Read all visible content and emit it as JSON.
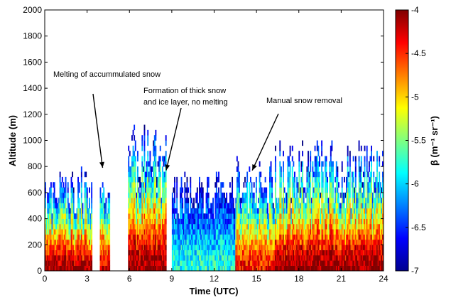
{
  "chart_data": {
    "type": "heatmap",
    "title": "",
    "xlabel": "Time (UTC)",
    "ylabel": "Altitude (m)",
    "xlim": [
      0,
      24
    ],
    "ylim": [
      0,
      2000
    ],
    "xticks": [
      "0",
      "3",
      "6",
      "9",
      "12",
      "15",
      "18",
      "21",
      "24"
    ],
    "yticks": [
      "0",
      "200",
      "400",
      "600",
      "800",
      "1000",
      "1200",
      "1400",
      "1600",
      "1800",
      "2000"
    ],
    "grid": false,
    "colorbar": {
      "label": "β (m⁻¹ sr⁻¹)",
      "range": [
        -7,
        -4
      ],
      "ticks": [
        "-4",
        "-4.5",
        "-5",
        "-5.5",
        "-6",
        "-6.5",
        "-7"
      ],
      "colormap": "jet"
    },
    "profiles": [
      {
        "t_start": 0,
        "t_end": 3.3,
        "top_altitude": 780,
        "surface_log_beta": -4.1
      },
      {
        "t_start": 3.9,
        "t_end": 4.6,
        "top_altitude": 800,
        "surface_log_beta": -4.2
      },
      {
        "t_start": 5.9,
        "t_end": 8.6,
        "top_altitude": 1100,
        "surface_log_beta": -4.0
      },
      {
        "t_start": 9.0,
        "t_end": 13.5,
        "top_altitude": 750,
        "surface_log_beta": -5.8
      },
      {
        "t_start": 13.5,
        "t_end": 16.3,
        "top_altitude": 850,
        "surface_log_beta": -4.4
      },
      {
        "t_start": 16.3,
        "t_end": 24,
        "top_altitude": 1000,
        "surface_log_beta": -4.0
      }
    ],
    "annotations": [
      {
        "text": "Melting of accummulated snow",
        "target_x": 4.1,
        "target_y": 790
      },
      {
        "text": "Formation of thick snow",
        "text2": "and ice layer, no melting",
        "target_x": 8.6,
        "target_y": 770
      },
      {
        "text": "Manual snow removal",
        "target_x": 14.7,
        "target_y": 770
      }
    ]
  }
}
